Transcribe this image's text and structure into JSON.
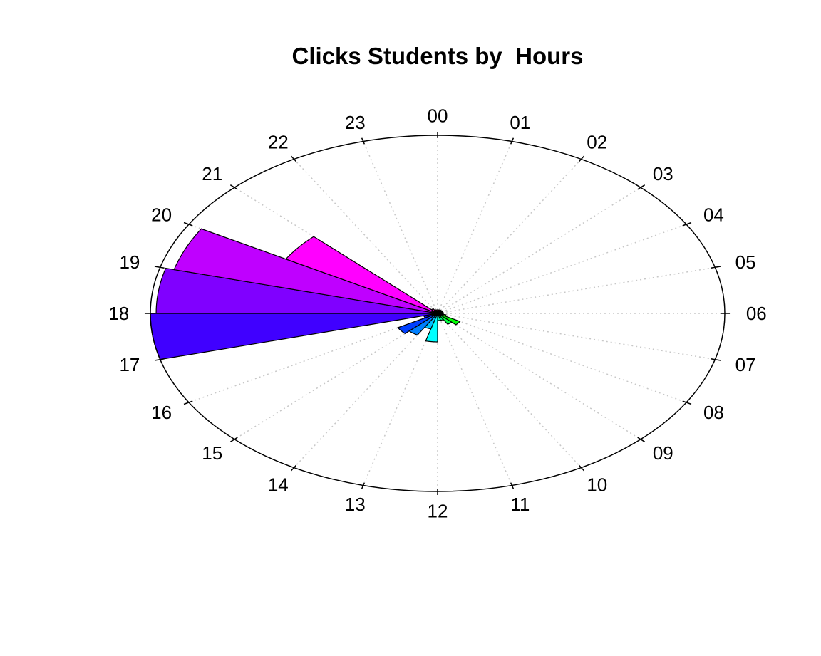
{
  "chart_data": {
    "type": "bar",
    "subtype": "polar-rose",
    "title": "Clicks Students by  Hours",
    "categories": [
      "00",
      "01",
      "02",
      "03",
      "04",
      "05",
      "06",
      "07",
      "08",
      "09",
      "10",
      "11",
      "12",
      "13",
      "14",
      "15",
      "16",
      "17",
      "18",
      "19",
      "20",
      "21",
      "22",
      "23"
    ],
    "values": [
      0.02,
      0.02,
      0.02,
      0.02,
      0.02,
      0.02,
      0.02,
      0.03,
      0.09,
      0.07,
      0.04,
      0.04,
      0.16,
      0.09,
      0.14,
      0.16,
      0.05,
      1.0,
      0.98,
      0.95,
      0.61,
      0.03,
      0.02,
      0.02
    ],
    "colors": [
      "#FF0000",
      "#FF4000",
      "#FF8000",
      "#FFBF00",
      "#FFFF00",
      "#BFFF00",
      "#80FF00",
      "#40FF00",
      "#00FF00",
      "#00FF40",
      "#00FF80",
      "#00FFBF",
      "#00FFFF",
      "#00BFFF",
      "#0080FF",
      "#0040FF",
      "#0000FF",
      "#4000FF",
      "#8000FF",
      "#BF00FF",
      "#FF00FF",
      "#FF00BF",
      "#FF0080",
      "#FF0040"
    ],
    "ylim": [
      0,
      1
    ],
    "grid": true,
    "legend": "none"
  }
}
